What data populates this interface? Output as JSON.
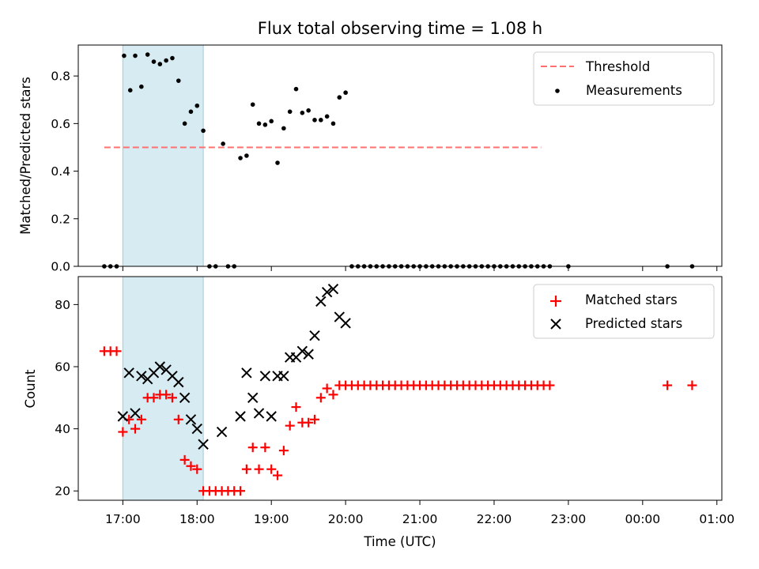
{
  "chart_data": [
    {
      "type": "scatter",
      "title": "Flux total observing time = 1.08 h",
      "xlabel": "",
      "ylabel": "Matched/Predicted stars",
      "xlim": [
        "16:24",
        "01:04"
      ],
      "ylim": [
        0,
        0.93
      ],
      "yticks": [
        "0.0",
        "0.2",
        "0.4",
        "0.6",
        "0.8"
      ],
      "ytick_values": [
        0,
        0.2,
        0.4,
        0.6,
        0.8
      ],
      "grid": false,
      "legend_position": "top-right",
      "legend": [
        {
          "label": "Threshold",
          "marker": "dashed-line",
          "color": "#ff7070"
        },
        {
          "label": "Measurements",
          "marker": "dot",
          "color": "#000000"
        }
      ],
      "highlight_span": {
        "x_start": "17:00",
        "x_end": "18:05",
        "color": "#add8e6"
      },
      "threshold": {
        "y": 0.5,
        "x_start": "16:45",
        "x_end": "22:38",
        "color": "#ff7070"
      },
      "series": [
        {
          "name": "Measurements",
          "color": "#000000",
          "points": [
            [
              "16:45",
              0
            ],
            [
              "16:50",
              0
            ],
            [
              "16:55",
              0
            ],
            [
              "17:01",
              0.885
            ],
            [
              "17:06",
              0.74
            ],
            [
              "17:10",
              0.885
            ],
            [
              "17:15",
              0.755
            ],
            [
              "17:20",
              0.89
            ],
            [
              "17:25",
              0.86
            ],
            [
              "17:30",
              0.85
            ],
            [
              "17:35",
              0.865
            ],
            [
              "17:40",
              0.875
            ],
            [
              "17:45",
              0.78
            ],
            [
              "17:50",
              0.6
            ],
            [
              "17:55",
              0.65
            ],
            [
              "18:00",
              0.675
            ],
            [
              "18:05",
              0.57
            ],
            [
              "18:10",
              0
            ],
            [
              "18:15",
              0
            ],
            [
              "18:25",
              0
            ],
            [
              "18:30",
              0
            ],
            [
              "18:21",
              0.515
            ],
            [
              "18:35",
              0.455
            ],
            [
              "18:40",
              0.465
            ],
            [
              "18:45",
              0.68
            ],
            [
              "18:50",
              0.6
            ],
            [
              "18:55",
              0.595
            ],
            [
              "19:00",
              0.61
            ],
            [
              "19:05",
              0.435
            ],
            [
              "19:10",
              0.58
            ],
            [
              "19:15",
              0.65
            ],
            [
              "19:20",
              0.745
            ],
            [
              "19:25",
              0.645
            ],
            [
              "19:30",
              0.655
            ],
            [
              "19:35",
              0.615
            ],
            [
              "19:40",
              0.615
            ],
            [
              "19:45",
              0.63
            ],
            [
              "19:50",
              0.6
            ],
            [
              "19:55",
              0.71
            ],
            [
              "20:00",
              0.73
            ],
            [
              "20:05",
              0
            ],
            [
              "20:10",
              0
            ],
            [
              "20:15",
              0
            ],
            [
              "20:20",
              0
            ],
            [
              "20:25",
              0
            ],
            [
              "20:30",
              0
            ],
            [
              "20:35",
              0
            ],
            [
              "20:40",
              0
            ],
            [
              "20:45",
              0
            ],
            [
              "20:50",
              0
            ],
            [
              "20:55",
              0
            ],
            [
              "21:00",
              0
            ],
            [
              "21:05",
              0
            ],
            [
              "21:10",
              0
            ],
            [
              "21:15",
              0
            ],
            [
              "21:20",
              0
            ],
            [
              "21:25",
              0
            ],
            [
              "21:30",
              0
            ],
            [
              "21:35",
              0
            ],
            [
              "21:40",
              0
            ],
            [
              "21:45",
              0
            ],
            [
              "21:50",
              0
            ],
            [
              "21:55",
              0
            ],
            [
              "22:00",
              0
            ],
            [
              "22:05",
              0
            ],
            [
              "22:10",
              0
            ],
            [
              "22:15",
              0
            ],
            [
              "22:20",
              0
            ],
            [
              "22:25",
              0
            ],
            [
              "22:30",
              0
            ],
            [
              "22:35",
              0
            ],
            [
              "22:40",
              0
            ],
            [
              "22:45",
              0
            ],
            [
              "23:00",
              0
            ],
            [
              "00:20",
              0
            ],
            [
              "00:40",
              0
            ]
          ]
        }
      ]
    },
    {
      "type": "scatter",
      "title": "",
      "xlabel": "Time (UTC)",
      "ylabel": "Count",
      "xlim": [
        "16:24",
        "01:04"
      ],
      "ylim": [
        17,
        89
      ],
      "xticks": [
        "17:00",
        "18:00",
        "19:00",
        "20:00",
        "21:00",
        "22:00",
        "23:00",
        "00:00",
        "01:00"
      ],
      "yticks": [
        "20",
        "40",
        "60",
        "80"
      ],
      "ytick_values": [
        20,
        40,
        60,
        80
      ],
      "grid": false,
      "legend_position": "top-right",
      "legend": [
        {
          "label": "Matched stars",
          "marker": "plus",
          "color": "#ff0000"
        },
        {
          "label": "Predicted stars",
          "marker": "x",
          "color": "#000000"
        }
      ],
      "highlight_span": {
        "x_start": "17:00",
        "x_end": "18:05",
        "color": "#add8e6"
      },
      "series": [
        {
          "name": "Matched stars",
          "color": "#ff0000",
          "points": [
            [
              "16:45",
              65
            ],
            [
              "16:50",
              65
            ],
            [
              "16:55",
              65
            ],
            [
              "17:00",
              39
            ],
            [
              "17:05",
              43
            ],
            [
              "17:10",
              40
            ],
            [
              "17:15",
              43
            ],
            [
              "17:20",
              50
            ],
            [
              "17:25",
              50
            ],
            [
              "17:30",
              51
            ],
            [
              "17:35",
              51
            ],
            [
              "17:40",
              50
            ],
            [
              "17:45",
              43
            ],
            [
              "17:50",
              30
            ],
            [
              "17:55",
              28
            ],
            [
              "18:00",
              27
            ],
            [
              "18:05",
              20
            ],
            [
              "18:10",
              20
            ],
            [
              "18:15",
              20
            ],
            [
              "18:20",
              20
            ],
            [
              "18:25",
              20
            ],
            [
              "18:30",
              20
            ],
            [
              "18:35",
              20
            ],
            [
              "18:40",
              27
            ],
            [
              "18:45",
              34
            ],
            [
              "18:50",
              27
            ],
            [
              "18:55",
              34
            ],
            [
              "19:00",
              27
            ],
            [
              "19:05",
              25
            ],
            [
              "19:10",
              33
            ],
            [
              "19:15",
              41
            ],
            [
              "19:20",
              47
            ],
            [
              "19:25",
              42
            ],
            [
              "19:30",
              42
            ],
            [
              "19:35",
              43
            ],
            [
              "19:40",
              50
            ],
            [
              "19:45",
              53
            ],
            [
              "19:50",
              51
            ],
            [
              "19:55",
              54
            ],
            [
              "20:00",
              54
            ],
            [
              "20:05",
              54
            ],
            [
              "20:10",
              54
            ],
            [
              "20:15",
              54
            ],
            [
              "20:20",
              54
            ],
            [
              "20:25",
              54
            ],
            [
              "20:30",
              54
            ],
            [
              "20:35",
              54
            ],
            [
              "20:40",
              54
            ],
            [
              "20:45",
              54
            ],
            [
              "20:50",
              54
            ],
            [
              "20:55",
              54
            ],
            [
              "21:00",
              54
            ],
            [
              "21:05",
              54
            ],
            [
              "21:10",
              54
            ],
            [
              "21:15",
              54
            ],
            [
              "21:20",
              54
            ],
            [
              "21:25",
              54
            ],
            [
              "21:30",
              54
            ],
            [
              "21:35",
              54
            ],
            [
              "21:40",
              54
            ],
            [
              "21:45",
              54
            ],
            [
              "21:50",
              54
            ],
            [
              "21:55",
              54
            ],
            [
              "22:00",
              54
            ],
            [
              "22:05",
              54
            ],
            [
              "22:10",
              54
            ],
            [
              "22:15",
              54
            ],
            [
              "22:20",
              54
            ],
            [
              "22:25",
              54
            ],
            [
              "22:30",
              54
            ],
            [
              "22:35",
              54
            ],
            [
              "22:40",
              54
            ],
            [
              "22:45",
              54
            ],
            [
              "00:20",
              54
            ],
            [
              "00:40",
              54
            ]
          ]
        },
        {
          "name": "Predicted stars",
          "color": "#000000",
          "points": [
            [
              "17:00",
              44
            ],
            [
              "17:05",
              58
            ],
            [
              "17:10",
              45
            ],
            [
              "17:15",
              57
            ],
            [
              "17:20",
              56
            ],
            [
              "17:25",
              58
            ],
            [
              "17:30",
              60
            ],
            [
              "17:35",
              59
            ],
            [
              "17:40",
              57
            ],
            [
              "17:45",
              55
            ],
            [
              "17:50",
              50
            ],
            [
              "17:55",
              43
            ],
            [
              "18:00",
              40
            ],
            [
              "18:05",
              35
            ],
            [
              "18:20",
              39
            ],
            [
              "18:35",
              44
            ],
            [
              "18:40",
              58
            ],
            [
              "18:45",
              50
            ],
            [
              "18:50",
              45
            ],
            [
              "18:55",
              57
            ],
            [
              "19:00",
              44
            ],
            [
              "19:05",
              57
            ],
            [
              "19:10",
              57
            ],
            [
              "19:15",
              63
            ],
            [
              "19:20",
              63
            ],
            [
              "19:25",
              65
            ],
            [
              "19:30",
              64
            ],
            [
              "19:35",
              70
            ],
            [
              "19:40",
              81
            ],
            [
              "19:45",
              84
            ],
            [
              "19:50",
              85
            ],
            [
              "19:55",
              76
            ],
            [
              "20:00",
              74
            ]
          ]
        }
      ]
    }
  ]
}
